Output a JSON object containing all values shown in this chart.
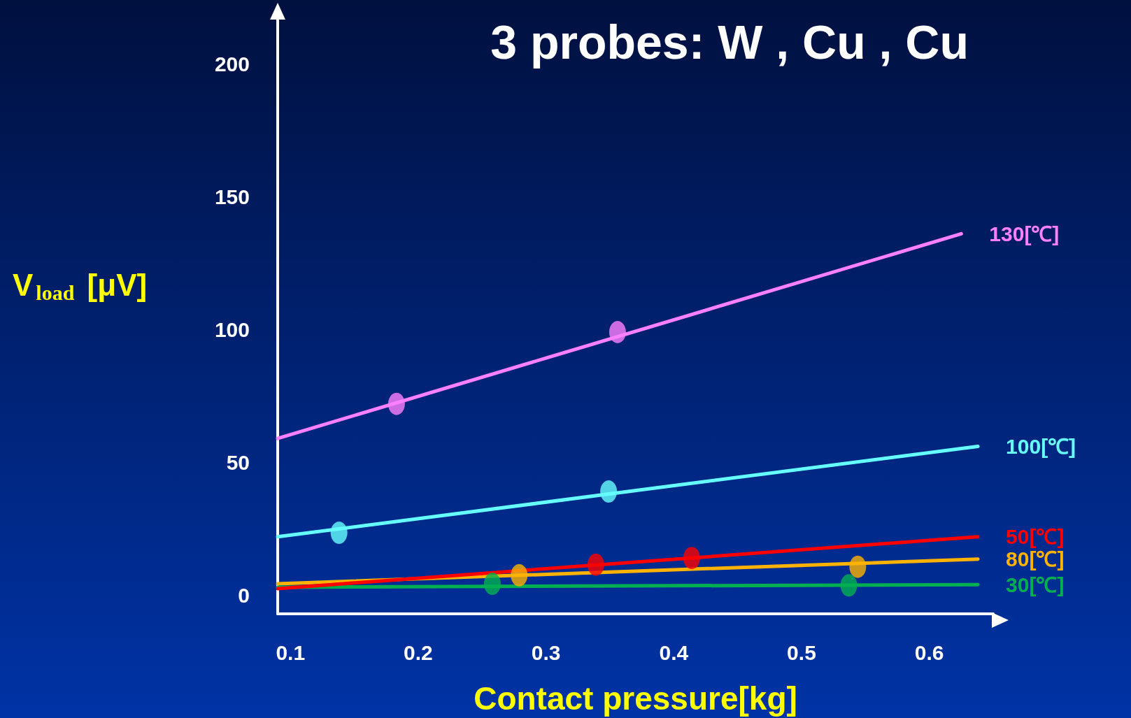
{
  "chart_data": {
    "type": "scatter",
    "title": "3 probes: W , Cu , Cu",
    "xlabel": "Contact pressure[kg]",
    "ylabel": "V$_{load}$ [μV]",
    "xlim": [
      0.09,
      0.65
    ],
    "xticks": [
      0.1,
      0.2,
      0.3,
      0.4,
      0.5,
      0.6
    ],
    "ylim": [
      -7,
      220
    ],
    "yticks": [
      0,
      50,
      100,
      150,
      200
    ],
    "grid": false,
    "marker": "circle",
    "series": [
      {
        "name": "130[℃]",
        "type": "line",
        "marker": "none",
        "color": "#ff80ff",
        "x": [
          0.09,
          0.625
        ],
        "values": [
          59,
          136
        ]
      },
      {
        "name": "100[℃]",
        "type": "line",
        "marker": "none",
        "color": "#66ffff",
        "x": [
          0.09,
          0.638
        ],
        "values": [
          22,
          56
        ]
      },
      {
        "name": "80[℃]",
        "type": "line",
        "marker": "none",
        "color": "#ffb300",
        "x": [
          0.09,
          0.638
        ],
        "values": [
          4.3,
          13.6
        ]
      },
      {
        "name": "30[℃]",
        "type": "line",
        "marker": "none",
        "color": "#00b050",
        "x": [
          0.09,
          0.638
        ],
        "values": [
          3,
          4
        ]
      },
      {
        "name": "50[℃]",
        "type": "line",
        "marker": "none",
        "color": "#ff0000",
        "x": [
          0.09,
          0.638
        ],
        "values": [
          2.5,
          22
        ]
      },
      {
        "color": "#ff80ff",
        "x": [
          0.183,
          0.356
        ],
        "values": [
          72,
          99
        ]
      },
      {
        "color": "#66ffff",
        "x": [
          0.138,
          0.349
        ],
        "values": [
          23.5,
          39
        ]
      },
      {
        "color": "#ff0000",
        "x": [
          0.339,
          0.414
        ],
        "values": [
          11.5,
          14
        ]
      },
      {
        "color": "#ffb300",
        "x": [
          0.279,
          0.544
        ],
        "values": [
          7.5,
          10.7
        ]
      },
      {
        "color": "#00b050",
        "x": [
          0.258,
          0.537
        ],
        "values": [
          4.3,
          3.7
        ]
      }
    ]
  }
}
